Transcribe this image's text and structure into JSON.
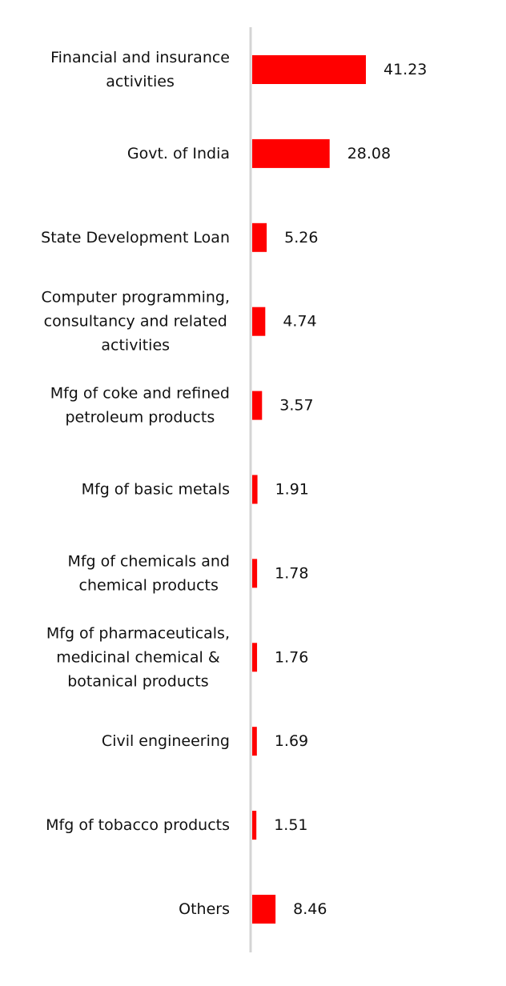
{
  "chart_data": {
    "type": "bar",
    "orientation": "horizontal",
    "categories": [
      [
        "Financial and insurance",
        "activities"
      ],
      [
        "Govt. of India"
      ],
      [
        "State Development Loan"
      ],
      [
        "Computer programming,",
        "consultancy and related",
        "activities"
      ],
      [
        "Mfg of coke and refined",
        "petroleum products"
      ],
      [
        "Mfg of basic metals"
      ],
      [
        "Mfg of chemicals and",
        "chemical products"
      ],
      [
        "Mfg of pharmaceuticals,",
        "medicinal chemical &",
        "botanical products"
      ],
      [
        "Civil engineering"
      ],
      [
        "Mfg of tobacco products"
      ],
      [
        "Others"
      ]
    ],
    "values": [
      41.23,
      28.08,
      5.26,
      4.74,
      3.57,
      1.91,
      1.78,
      1.76,
      1.69,
      1.51,
      8.46
    ],
    "value_labels": [
      "41.23",
      "28.08",
      "5.26",
      "4.74",
      "3.57",
      "1.91",
      "1.78",
      "1.76",
      "1.69",
      "1.51",
      "8.46"
    ],
    "title": "",
    "xlabel": "",
    "ylabel": "",
    "xlim": [
      0,
      41.23
    ],
    "grid": false,
    "legend": "none",
    "bar_color": "#ff0000",
    "axis_color": "#d4d4d4"
  }
}
